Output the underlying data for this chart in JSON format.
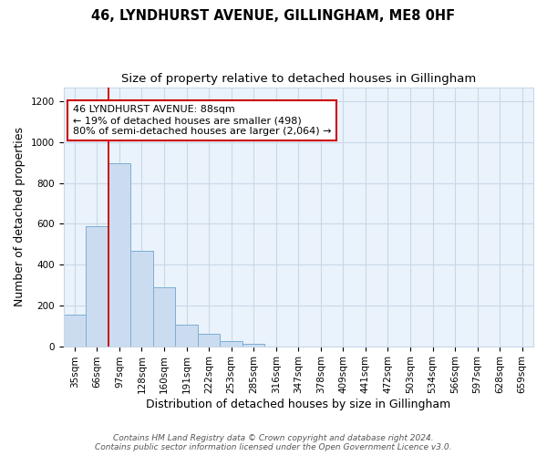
{
  "title": "46, LYNDHURST AVENUE, GILLINGHAM, ME8 0HF",
  "subtitle": "Size of property relative to detached houses in Gillingham",
  "xlabel": "Distribution of detached houses by size in Gillingham",
  "ylabel": "Number of detached properties",
  "bar_labels": [
    "35sqm",
    "66sqm",
    "97sqm",
    "128sqm",
    "160sqm",
    "191sqm",
    "222sqm",
    "253sqm",
    "285sqm",
    "316sqm",
    "347sqm",
    "378sqm",
    "409sqm",
    "441sqm",
    "472sqm",
    "503sqm",
    "534sqm",
    "566sqm",
    "597sqm",
    "628sqm",
    "659sqm"
  ],
  "bar_values": [
    155,
    590,
    895,
    468,
    290,
    105,
    62,
    27,
    12,
    0,
    0,
    0,
    0,
    0,
    0,
    0,
    0,
    0,
    0,
    0,
    0
  ],
  "bar_color": "#ccdcf0",
  "bar_edge_color": "#7aafd4",
  "vline_color": "#cc0000",
  "annotation_line1": "46 LYNDHURST AVENUE: 88sqm",
  "annotation_line2": "← 19% of detached houses are smaller (498)",
  "annotation_line3": "80% of semi-detached houses are larger (2,064) →",
  "box_edge_color": "#cc0000",
  "ylim": [
    0,
    1270
  ],
  "yticks": [
    0,
    200,
    400,
    600,
    800,
    1000,
    1200
  ],
  "footer_line1": "Contains HM Land Registry data © Crown copyright and database right 2024.",
  "footer_line2": "Contains public sector information licensed under the Open Government Licence v3.0.",
  "bg_color": "#ffffff",
  "plot_bg_color": "#eaf2fb",
  "grid_color": "#c8d8e8",
  "title_fontsize": 10.5,
  "subtitle_fontsize": 9.5,
  "axis_label_fontsize": 9,
  "tick_fontsize": 7.5,
  "annotation_fontsize": 8,
  "footer_fontsize": 6.5
}
